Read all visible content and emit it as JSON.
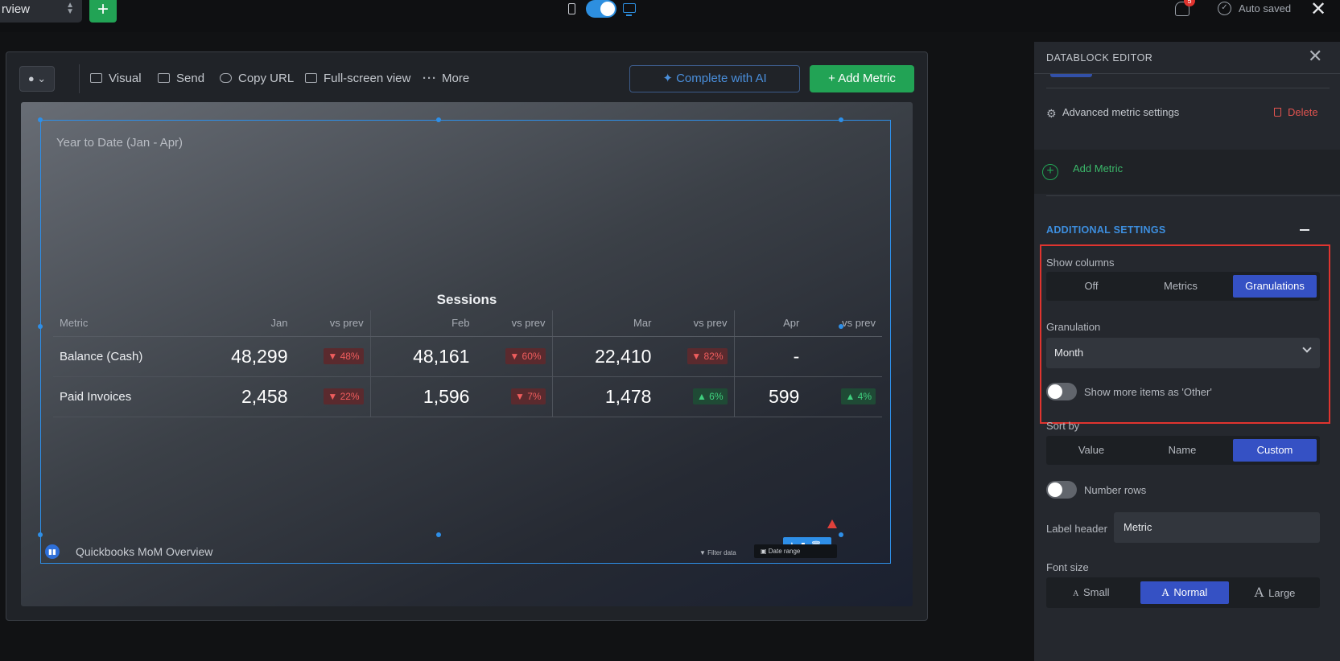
{
  "topbar": {
    "dashboard_select": "rview",
    "add_label": "+",
    "notification_count": "5",
    "autosave_status": "Auto saved",
    "close_label": "✕"
  },
  "toolbar": {
    "visual": "Visual",
    "send": "Send",
    "copy_url": "Copy URL",
    "fullscreen": "Full-screen view",
    "more": "More",
    "complete_ai": "Complete with AI",
    "add_metric": "Add Metric"
  },
  "widget": {
    "title": "Year to Date (Jan - Apr)",
    "group_header": "Sessions",
    "columns": [
      "Metric",
      "Jan",
      "vs prev",
      "Feb",
      "vs prev",
      "Mar",
      "vs prev",
      "Apr",
      "vs prev"
    ],
    "rows": [
      {
        "name": "Balance (Cash)",
        "jan": "48,299",
        "jan_delta": "▼ 48%",
        "feb": "48,161",
        "feb_delta": "▼ 60%",
        "mar": "22,410",
        "mar_delta": "▼ 82%",
        "apr": "-",
        "apr_delta": ""
      },
      {
        "name": "Paid Invoices",
        "jan": "2,458",
        "jan_delta": "▼ 22%",
        "feb": "1,596",
        "feb_delta": "▼ 7%",
        "mar": "1,478",
        "mar_delta": "▲ 6%",
        "apr": "599",
        "apr_delta": "▲ 4%"
      }
    ],
    "footer_title": "Quickbooks MoM Overview",
    "filter_data": "Filter data",
    "date_label": "Date range"
  },
  "editor": {
    "title": "DATABLOCK EDITOR",
    "advanced_settings": "Advanced metric settings",
    "delete": "Delete",
    "add_metric": "Add Metric",
    "additional_settings": "ADDITIONAL SETTINGS",
    "show_columns_label": "Show columns",
    "show_columns_options": [
      "Off",
      "Metrics",
      "Granulations"
    ],
    "show_columns_selected": "Granulations",
    "granulation_label": "Granulation",
    "granulation_value": "Month",
    "show_more_other": "Show more items as 'Other'",
    "sort_by_label": "Sort by",
    "sort_by_options": [
      "Value",
      "Name",
      "Custom"
    ],
    "sort_by_selected": "Custom",
    "number_rows": "Number rows",
    "label_header_label": "Label header",
    "label_header_value": "Metric",
    "font_size_label": "Font size",
    "font_size_options": [
      "Small",
      "Normal",
      "Large"
    ],
    "font_size_selected": "Normal"
  },
  "colors": {
    "accent_blue": "#2e8fe8",
    "primary_green": "#22a355",
    "selected_option": "#3551c4",
    "negative": "#ef5d5d",
    "positive": "#3fd07e",
    "highlight": "#e0342f"
  }
}
